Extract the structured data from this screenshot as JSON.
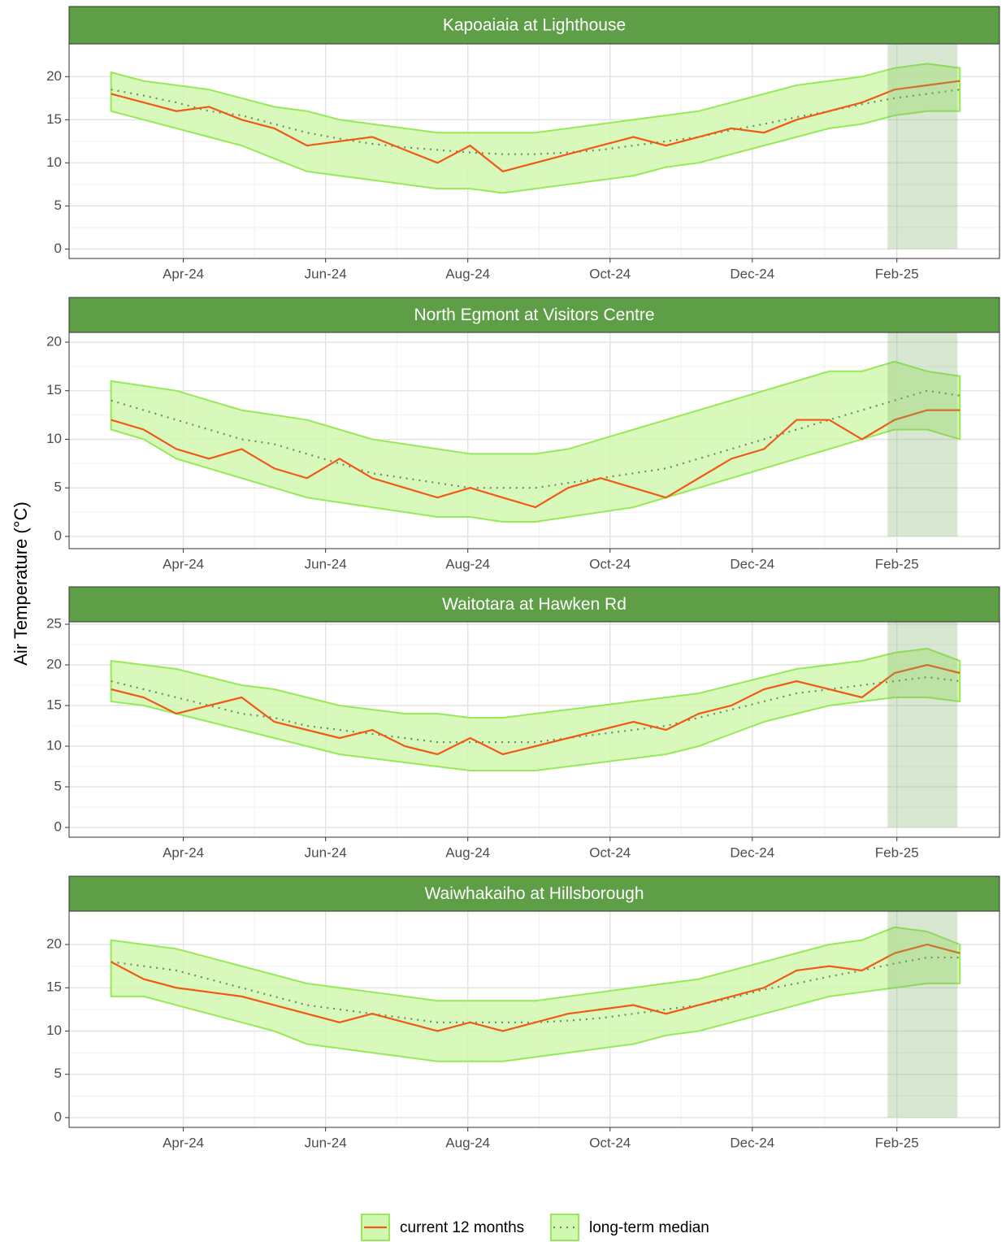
{
  "ylabel": "Air Temperature  (°C)",
  "chart_data": [
    {
      "type": "line",
      "title": "Kapoaiaia at Lighthouse",
      "x": [
        -31,
        -17,
        -3,
        11,
        25,
        39,
        53,
        67,
        81,
        95,
        109,
        123,
        137,
        151,
        165,
        179,
        193,
        207,
        221,
        235,
        249,
        263,
        277,
        291,
        305,
        319,
        333
      ],
      "xlim": [
        -49,
        350
      ],
      "xticks": [
        {
          "value": 0,
          "label": "Apr-24"
        },
        {
          "value": 61,
          "label": "Jun-24"
        },
        {
          "value": 122,
          "label": "Aug-24"
        },
        {
          "value": 183,
          "label": "Oct-24"
        },
        {
          "value": 244,
          "label": "Dec-24"
        },
        {
          "value": 306,
          "label": "Feb-25"
        }
      ],
      "ylim": [
        -1.1,
        23.8
      ],
      "yticks": [
        0,
        5,
        10,
        15,
        20
      ],
      "highlight": [
        302,
        332
      ],
      "highlight_color": "#7fb069",
      "band_color": "#d2f7b0",
      "band_line_color": "#96ea55",
      "grid": true,
      "series": [
        {
          "name": "current 12 months",
          "color": "#f05a14",
          "values": [
            18,
            17,
            16,
            16.5,
            15,
            14,
            12,
            12.5,
            13,
            11.5,
            10,
            12,
            9,
            10,
            11,
            12,
            13,
            12,
            13,
            14,
            13.5,
            15,
            16,
            17,
            18.5,
            19,
            19.5
          ]
        },
        {
          "name": "long-term median",
          "color": "#6b8f62",
          "values": [
            18.5,
            17.8,
            17,
            16,
            15.5,
            14.5,
            13.5,
            12.8,
            12.2,
            11.8,
            11.5,
            11.2,
            11,
            11,
            11.2,
            11.5,
            12,
            12.5,
            13,
            13.8,
            14.5,
            15.3,
            16,
            16.8,
            17.5,
            18,
            18.5
          ],
          "range_low": [
            16,
            15,
            14,
            13,
            12,
            10.5,
            9,
            8.5,
            8,
            7.5,
            7,
            7,
            6.5,
            7,
            7.5,
            8,
            8.5,
            9.5,
            10,
            11,
            12,
            13,
            14,
            14.5,
            15.5,
            16,
            16
          ],
          "range_high": [
            20.5,
            19.5,
            19,
            18.5,
            17.5,
            16.5,
            16,
            15,
            14.5,
            14,
            13.5,
            13.5,
            13.5,
            13.5,
            14,
            14.5,
            15,
            15.5,
            16,
            17,
            18,
            19,
            19.5,
            20,
            21,
            21.5,
            21
          ]
        }
      ]
    },
    {
      "type": "line",
      "title": "North Egmont at Visitors Centre",
      "x": [
        -31,
        -17,
        -3,
        11,
        25,
        39,
        53,
        67,
        81,
        95,
        109,
        123,
        137,
        151,
        165,
        179,
        193,
        207,
        221,
        235,
        249,
        263,
        277,
        291,
        305,
        319,
        333
      ],
      "xlim": [
        -49,
        350
      ],
      "xticks": [
        {
          "value": 0,
          "label": "Apr-24"
        },
        {
          "value": 61,
          "label": "Jun-24"
        },
        {
          "value": 122,
          "label": "Aug-24"
        },
        {
          "value": 183,
          "label": "Oct-24"
        },
        {
          "value": 244,
          "label": "Dec-24"
        },
        {
          "value": 306,
          "label": "Feb-25"
        }
      ],
      "ylim": [
        -1.26,
        21
      ],
      "yticks": [
        0,
        5,
        10,
        15,
        20
      ],
      "highlight": [
        302,
        332
      ],
      "highlight_color": "#7fb069",
      "band_color": "#d2f7b0",
      "band_line_color": "#96ea55",
      "grid": true,
      "series": [
        {
          "name": "current 12 months",
          "color": "#f05a14",
          "values": [
            12,
            11,
            9,
            8,
            9,
            7,
            6,
            8,
            6,
            5,
            4,
            5,
            4,
            3,
            5,
            6,
            5,
            4,
            6,
            8,
            9,
            12,
            12,
            10,
            12,
            13,
            13
          ]
        },
        {
          "name": "long-term median",
          "color": "#6b8f62",
          "values": [
            14,
            13,
            12,
            11,
            10,
            9.5,
            8.5,
            7.5,
            6.5,
            6,
            5.5,
            5,
            5,
            5,
            5.5,
            6,
            6.5,
            7,
            8,
            9,
            10,
            11,
            12,
            13,
            14,
            15,
            14.5
          ],
          "range_low": [
            11,
            10,
            8,
            7,
            6,
            5,
            4,
            3.5,
            3,
            2.5,
            2,
            2,
            1.5,
            1.5,
            2,
            2.5,
            3,
            4,
            5,
            6,
            7,
            8,
            9,
            10,
            11,
            11,
            10
          ],
          "range_high": [
            16,
            15.5,
            15,
            14,
            13,
            12.5,
            12,
            11,
            10,
            9.5,
            9,
            8.5,
            8.5,
            8.5,
            9,
            10,
            11,
            12,
            13,
            14,
            15,
            16,
            17,
            17,
            18,
            17,
            16.5
          ]
        }
      ]
    },
    {
      "type": "line",
      "title": "Waitotara at Hawken Rd",
      "x": [
        -31,
        -17,
        -3,
        11,
        25,
        39,
        53,
        67,
        81,
        95,
        109,
        123,
        137,
        151,
        165,
        179,
        193,
        207,
        221,
        235,
        249,
        263,
        277,
        291,
        305,
        319,
        333
      ],
      "xlim": [
        -49,
        350
      ],
      "xticks": [
        {
          "value": 0,
          "label": "Apr-24"
        },
        {
          "value": 61,
          "label": "Jun-24"
        },
        {
          "value": 122,
          "label": "Aug-24"
        },
        {
          "value": 183,
          "label": "Oct-24"
        },
        {
          "value": 244,
          "label": "Dec-24"
        },
        {
          "value": 306,
          "label": "Feb-25"
        }
      ],
      "ylim": [
        -1.2,
        25.3
      ],
      "yticks": [
        0,
        5,
        10,
        15,
        20,
        25
      ],
      "highlight": [
        302,
        332
      ],
      "highlight_color": "#7fb069",
      "band_color": "#d2f7b0",
      "band_line_color": "#96ea55",
      "grid": true,
      "series": [
        {
          "name": "current 12 months",
          "color": "#f05a14",
          "values": [
            17,
            16,
            14,
            15,
            16,
            13,
            12,
            11,
            12,
            10,
            9,
            11,
            9,
            10,
            11,
            12,
            13,
            12,
            14,
            15,
            17,
            18,
            17,
            16,
            19,
            20,
            19
          ]
        },
        {
          "name": "long-term median",
          "color": "#6b8f62",
          "values": [
            18,
            17,
            16,
            15,
            14,
            13.5,
            12.5,
            12,
            11.5,
            11,
            10.5,
            10.5,
            10.5,
            10.5,
            11,
            11.5,
            12,
            12.5,
            13.5,
            14.5,
            15.5,
            16.5,
            17,
            17.5,
            18,
            18.5,
            18
          ],
          "range_low": [
            15.5,
            15,
            14,
            13,
            12,
            11,
            10,
            9,
            8.5,
            8,
            7.5,
            7,
            7,
            7,
            7.5,
            8,
            8.5,
            9,
            10,
            11.5,
            13,
            14,
            15,
            15.5,
            16,
            16,
            15.5
          ],
          "range_high": [
            20.5,
            20,
            19.5,
            18.5,
            17.5,
            17,
            16,
            15,
            14.5,
            14,
            14,
            13.5,
            13.5,
            14,
            14.5,
            15,
            15.5,
            16,
            16.5,
            17.5,
            18.5,
            19.5,
            20,
            20.5,
            21.5,
            22,
            20.5
          ]
        }
      ]
    },
    {
      "type": "line",
      "title": "Waiwhakaiho at Hillsborough",
      "x": [
        -31,
        -17,
        -3,
        11,
        25,
        39,
        53,
        67,
        81,
        95,
        109,
        123,
        137,
        151,
        165,
        179,
        193,
        207,
        221,
        235,
        249,
        263,
        277,
        291,
        305,
        319,
        333
      ],
      "xlim": [
        -49,
        350
      ],
      "xticks": [
        {
          "value": 0,
          "label": "Apr-24"
        },
        {
          "value": 61,
          "label": "Jun-24"
        },
        {
          "value": 122,
          "label": "Aug-24"
        },
        {
          "value": 183,
          "label": "Oct-24"
        },
        {
          "value": 244,
          "label": "Dec-24"
        },
        {
          "value": 306,
          "label": "Feb-25"
        }
      ],
      "ylim": [
        -1.13,
        23.85
      ],
      "yticks": [
        0,
        5,
        10,
        15,
        20
      ],
      "highlight": [
        302,
        332
      ],
      "highlight_color": "#7fb069",
      "band_color": "#d2f7b0",
      "band_line_color": "#96ea55",
      "grid": true,
      "series": [
        {
          "name": "current 12 months",
          "color": "#f05a14",
          "values": [
            18,
            16,
            15,
            14.5,
            14,
            13,
            12,
            11,
            12,
            11,
            10,
            11,
            10,
            11,
            12,
            12.5,
            13,
            12,
            13,
            14,
            15,
            17,
            17.5,
            17,
            19,
            20,
            19
          ]
        },
        {
          "name": "long-term median",
          "color": "#6b8f62",
          "values": [
            18,
            17.5,
            17,
            16,
            15,
            14,
            13,
            12.5,
            12,
            11.5,
            11,
            11,
            11,
            11,
            11.2,
            11.5,
            12,
            12.5,
            13,
            13.8,
            14.8,
            15.5,
            16.3,
            17,
            17.8,
            18.5,
            18.5
          ],
          "range_low": [
            14,
            14,
            13,
            12,
            11,
            10,
            8.5,
            8,
            7.5,
            7,
            6.5,
            6.5,
            6.5,
            7,
            7.5,
            8,
            8.5,
            9.5,
            10,
            11,
            12,
            13,
            14,
            14.5,
            15,
            15.5,
            15.5
          ],
          "range_high": [
            20.5,
            20,
            19.5,
            18.5,
            17.5,
            16.5,
            15.5,
            15,
            14.5,
            14,
            13.5,
            13.5,
            13.5,
            13.5,
            14,
            14.5,
            15,
            15.5,
            16,
            17,
            18,
            19,
            20,
            20.5,
            22,
            21.5,
            20
          ]
        }
      ]
    }
  ]
}
